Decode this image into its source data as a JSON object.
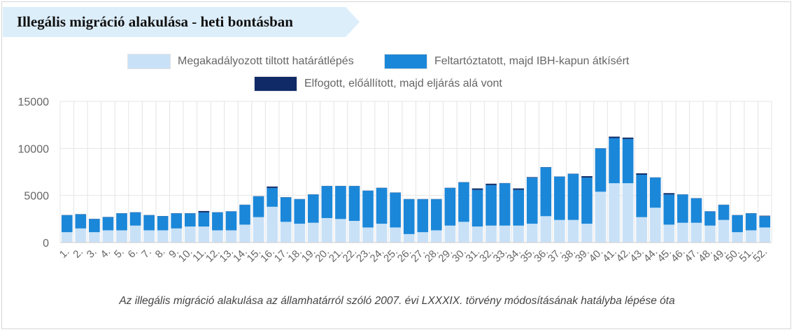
{
  "title": "Illegális migráció alakulása - heti bontásban",
  "caption": "Az illegális migráció alakulása az államhatárról szóló 2007. évi LXXXIX. törvény módosításának hatályba lépése óta",
  "colors": {
    "title_banner": "#ddeefb",
    "series_1": "#c8e1f7",
    "series_2": "#1b87d9",
    "series_3": "#0f2a66",
    "grid": "#e4e4e4",
    "axis_text": "#666666"
  },
  "chart_data": {
    "type": "bar",
    "stacked": true,
    "ylim": [
      0,
      15000
    ],
    "yticks": [
      0,
      5000,
      10000,
      15000
    ],
    "grid": true,
    "legend_position": "top",
    "categories": [
      "1.",
      "2.",
      "3.",
      "4.",
      "5.",
      "6.",
      "7.",
      "8.",
      "9.",
      "10.",
      "11.",
      "12.",
      "13.",
      "14.",
      "15.",
      "16.",
      "17.",
      "18.",
      "19.",
      "20.",
      "21.",
      "22.",
      "23.",
      "24.",
      "25.",
      "26.",
      "27.",
      "28.",
      "29.",
      "30.",
      "31.",
      "32.",
      "33.",
      "34.",
      "35.",
      "36.",
      "37.",
      "38.",
      "39.",
      "40.",
      "41.",
      "42.",
      "43.",
      "44.",
      "45.",
      "46.",
      "47.",
      "48.",
      "49.",
      "50.",
      "51.",
      "52."
    ],
    "series": [
      {
        "name": "Megakadályozott tiltott határátlépés",
        "values": [
          1100,
          1500,
          1100,
          1300,
          1300,
          1800,
          1300,
          1300,
          1500,
          1700,
          1700,
          1300,
          1300,
          1900,
          2700,
          3800,
          2200,
          2000,
          2100,
          2600,
          2500,
          2300,
          1600,
          2000,
          1600,
          900,
          1100,
          1300,
          1800,
          2200,
          1700,
          1800,
          1800,
          1800,
          2000,
          2800,
          2400,
          2400,
          2000,
          5400,
          6300,
          6300,
          2700,
          3700,
          1900,
          2100,
          2100,
          1800,
          2400,
          1100,
          1300,
          1600
        ]
      },
      {
        "name": "Feltartóztatott, majd IBH-kapun átkísért",
        "values": [
          1800,
          1500,
          1400,
          1400,
          1800,
          1400,
          1600,
          1500,
          1600,
          1400,
          1500,
          1900,
          2000,
          2100,
          2200,
          2000,
          2600,
          2600,
          3000,
          3400,
          3500,
          3700,
          3900,
          3800,
          3700,
          3700,
          3500,
          3300,
          4000,
          4200,
          3900,
          4300,
          4500,
          3800,
          4900,
          5200,
          4600,
          4900,
          4900,
          4600,
          4800,
          4700,
          4500,
          3200,
          3200,
          3000,
          2600,
          1500,
          1600,
          1800,
          1800,
          1200
        ]
      },
      {
        "name": "Elfogott, előállított, majd eljárás alá vont",
        "values": [
          20,
          20,
          20,
          20,
          20,
          20,
          20,
          20,
          20,
          20,
          150,
          20,
          20,
          20,
          20,
          150,
          20,
          20,
          20,
          20,
          20,
          20,
          20,
          20,
          20,
          20,
          20,
          20,
          20,
          20,
          150,
          150,
          20,
          150,
          50,
          20,
          20,
          20,
          150,
          20,
          150,
          150,
          150,
          20,
          150,
          20,
          20,
          20,
          20,
          20,
          20,
          50
        ]
      }
    ]
  }
}
